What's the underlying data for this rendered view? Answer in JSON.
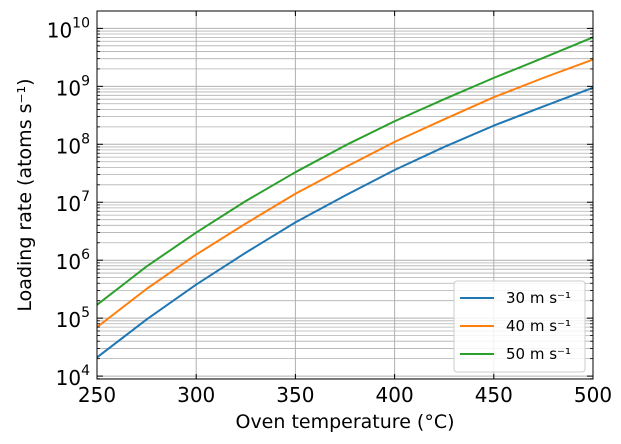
{
  "chart_data": {
    "type": "line",
    "xlabel": "Oven temperature (°C)",
    "ylabel": "Loading rate (atoms s⁻¹)",
    "xlim": [
      250,
      500
    ],
    "ylim_log10": [
      3.95,
      10.3
    ],
    "yscale": "log",
    "grid": true,
    "legend_position": "lower-right",
    "x_ticks": [
      {
        "value": 250,
        "label": "250"
      },
      {
        "value": 300,
        "label": "300"
      },
      {
        "value": 350,
        "label": "350"
      },
      {
        "value": 400,
        "label": "400"
      },
      {
        "value": 450,
        "label": "450"
      },
      {
        "value": 500,
        "label": "500"
      }
    ],
    "y_ticks": [
      {
        "exp": 4,
        "base": "10",
        "sup": "4"
      },
      {
        "exp": 5,
        "base": "10",
        "sup": "5"
      },
      {
        "exp": 6,
        "base": "10",
        "sup": "6"
      },
      {
        "exp": 7,
        "base": "10",
        "sup": "7"
      },
      {
        "exp": 8,
        "base": "10",
        "sup": "8"
      },
      {
        "exp": 9,
        "base": "10",
        "sup": "9"
      },
      {
        "exp": 10,
        "base": "10",
        "sup": "10"
      }
    ],
    "x": [
      250,
      275,
      300,
      325,
      350,
      375,
      400,
      425,
      450,
      475,
      500
    ],
    "series": [
      {
        "name": "30 m s⁻¹",
        "color": "#1f77b4",
        "values": [
          21000,
          95000,
          380000,
          1350000,
          4500000,
          13000000,
          36000000,
          90000000,
          210000000,
          450000000,
          950000000
        ]
      },
      {
        "name": "40 m s⁻¹",
        "color": "#ff7f0e",
        "values": [
          70000,
          320000,
          1250000,
          4300000,
          14000000,
          40000000,
          110000000,
          270000000,
          650000000,
          1400000000,
          2900000000
        ]
      },
      {
        "name": "50 m s⁻¹",
        "color": "#2ca02c",
        "values": [
          170000,
          780000,
          3000000,
          10500000,
          33000000,
          95000000,
          250000000,
          600000000,
          1400000000,
          3100000000,
          7000000000
        ]
      }
    ]
  }
}
